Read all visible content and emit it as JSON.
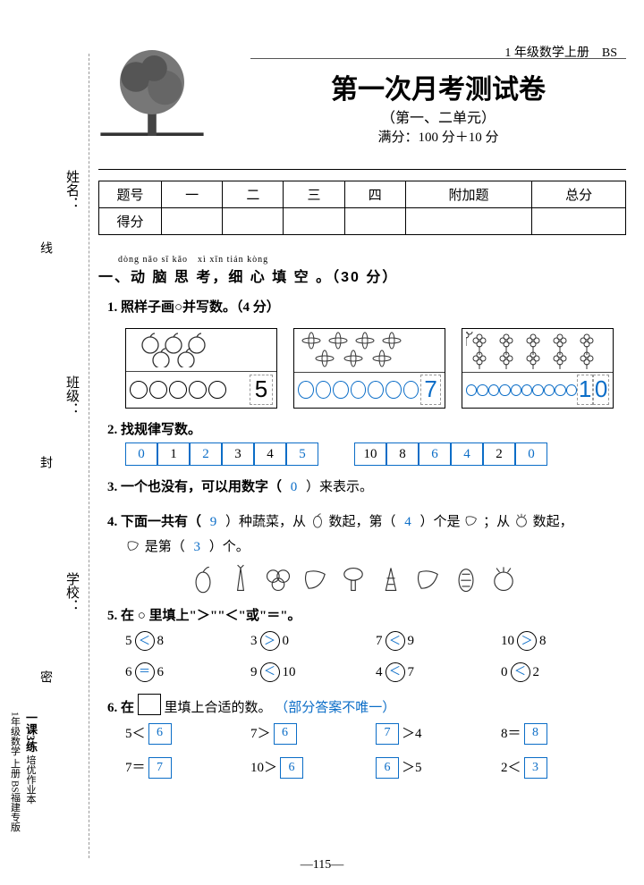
{
  "side": {
    "name": "姓名：",
    "class": "班级：",
    "school": "学校：",
    "d1": "线",
    "d2": "封",
    "d3": "密"
  },
  "rail": {
    "series": "一课3练",
    "sub": "培优作业本",
    "book": "1年级数学 上册 BS福建专版"
  },
  "header": {
    "sup": "1 年级数学上册　BS",
    "title": "第一次月考测试卷",
    "sub": "（第一、二单元）",
    "score": "满分：100 分＋10 分"
  },
  "table": {
    "h0": "题号",
    "h1": "一",
    "h2": "二",
    "h3": "三",
    "h4": "四",
    "h5": "附加题",
    "h6": "总分",
    "r0": "得分"
  },
  "sec1": {
    "pinyin": "dòng nǎo sī kǎo　xì xīn tián kòng",
    "title": "一、动 脑 思 考，细 心 填 空 。（30 分）"
  },
  "q1": {
    "t": "1. 照样子画○并写数。（4 分）",
    "d1": "5",
    "d2": "7",
    "d3a": "1",
    "d3b": "0"
  },
  "q2": {
    "t": "2. 找规律写数。",
    "a": [
      "0",
      "1",
      "2",
      "3",
      "4",
      "5"
    ],
    "b": [
      "10",
      "8",
      "6",
      "4",
      "2",
      "0"
    ],
    "a_blue": [
      true,
      false,
      true,
      false,
      false,
      true
    ],
    "b_blue": [
      false,
      false,
      true,
      true,
      false,
      true
    ]
  },
  "q3": {
    "t_pre": "3. 一个也没有，可以用数字（",
    "ans": "0",
    "t_post": "）来表示。"
  },
  "q4": {
    "pre": "4. 下面一共有（",
    "a1": "9",
    "mid1": "）种蔬菜，从",
    "mid2": "数起，第（",
    "a2": "4",
    "mid3": "）个是",
    "mid4": "；从",
    "mid5": "数起，",
    "line2a": "是第（",
    "a3": "3",
    "line2b": "）个。"
  },
  "q5": {
    "t": "5. 在 ○ 里填上\"＞\"\"＜\"或\"＝\"。",
    "rows": [
      [
        "5",
        "＜",
        "8"
      ],
      [
        "3",
        "＞",
        "0"
      ],
      [
        "7",
        "＜",
        "9"
      ],
      [
        "10",
        "＞",
        "8"
      ],
      [
        "6",
        "＝",
        "6"
      ],
      [
        "9",
        "＜",
        "10"
      ],
      [
        "4",
        "＜",
        "7"
      ],
      [
        "0",
        "＜",
        "2"
      ]
    ]
  },
  "q6": {
    "t_a": "6. 在",
    "t_b": "里填上合适的数。",
    "note": "（部分答案不唯一）",
    "rows": [
      [
        "5＜",
        "6"
      ],
      [
        "7＞",
        "6"
      ],
      [
        "",
        "7",
        "＞4"
      ],
      [
        "8＝",
        "8"
      ],
      [
        "7＝",
        "7"
      ],
      [
        "10＞",
        "6"
      ],
      [
        "",
        "6",
        "＞5"
      ],
      [
        "2＜",
        "3"
      ]
    ]
  },
  "page": "—115—"
}
